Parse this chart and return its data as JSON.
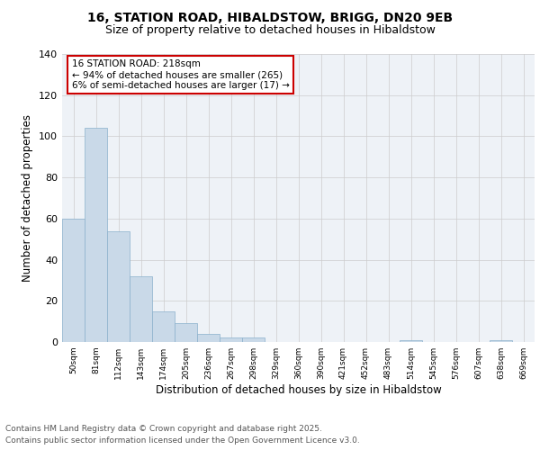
{
  "title_line1": "16, STATION ROAD, HIBALDSTOW, BRIGG, DN20 9EB",
  "title_line2": "Size of property relative to detached houses in Hibaldstow",
  "xlabel": "Distribution of detached houses by size in Hibaldstow",
  "ylabel": "Number of detached properties",
  "categories": [
    "50sqm",
    "81sqm",
    "112sqm",
    "143sqm",
    "174sqm",
    "205sqm",
    "236sqm",
    "267sqm",
    "298sqm",
    "329sqm",
    "360sqm",
    "390sqm",
    "421sqm",
    "452sqm",
    "483sqm",
    "514sqm",
    "545sqm",
    "576sqm",
    "607sqm",
    "638sqm",
    "669sqm"
  ],
  "values": [
    60,
    104,
    54,
    32,
    15,
    9,
    4,
    2,
    2,
    0,
    0,
    0,
    0,
    0,
    0,
    1,
    0,
    0,
    0,
    1,
    0
  ],
  "bar_color": "#c9d9e8",
  "bar_edge_color": "#8ab0cc",
  "ylim": [
    0,
    140
  ],
  "yticks": [
    0,
    20,
    40,
    60,
    80,
    100,
    120,
    140
  ],
  "annotation_box_text": "16 STATION ROAD: 218sqm\n← 94% of detached houses are smaller (265)\n6% of semi-detached houses are larger (17) →",
  "annotation_box_color": "#ffffff",
  "annotation_box_edge_color": "#cc0000",
  "footer_line1": "Contains HM Land Registry data © Crown copyright and database right 2025.",
  "footer_line2": "Contains public sector information licensed under the Open Government Licence v3.0.",
  "grid_color": "#cccccc",
  "plot_bg_color": "#eef2f7",
  "title_fontsize": 10,
  "subtitle_fontsize": 9,
  "ylabel_fontsize": 8.5,
  "xlabel_fontsize": 8.5,
  "tick_fontsize": 8,
  "xtick_fontsize": 6.5,
  "ann_fontsize": 7.5,
  "footer_fontsize": 6.5
}
